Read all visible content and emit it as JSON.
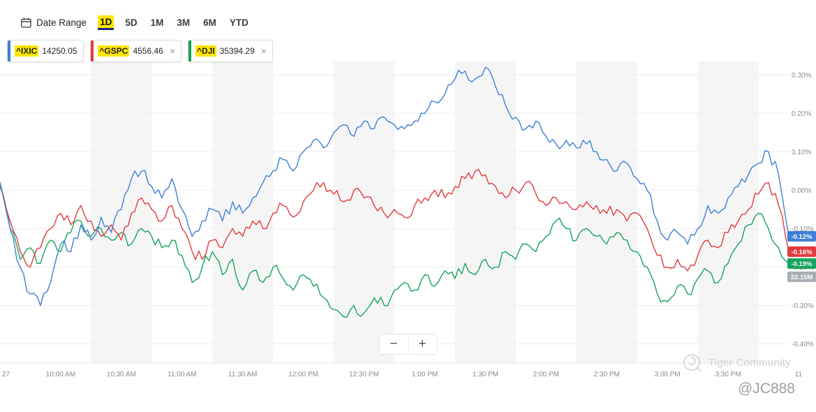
{
  "toolbar": {
    "date_range_label": "Date Range",
    "tabs": [
      {
        "label": "1D",
        "active": true
      },
      {
        "label": "5D",
        "active": false
      },
      {
        "label": "1M",
        "active": false
      },
      {
        "label": "3M",
        "active": false
      },
      {
        "label": "6M",
        "active": false
      },
      {
        "label": "YTD",
        "active": false
      }
    ]
  },
  "highlight_color": "#ffe600",
  "tickers": [
    {
      "symbol": "^IXIC",
      "price": "14250.05",
      "color": "#3d7fd4",
      "closable": false
    },
    {
      "symbol": "^GSPC",
      "price": "4556.46",
      "color": "#e23a3d",
      "closable": true
    },
    {
      "symbol": "^DJI",
      "price": "35394.29",
      "color": "#15a35b",
      "closable": true
    }
  ],
  "zoom_controls": {
    "minus": "−",
    "plus": "+"
  },
  "watermark": {
    "community": "Tiger Community",
    "user": "@JC888"
  },
  "chart_data": {
    "type": "line",
    "x_unit": "minutes from 09:30",
    "total_minutes": 390,
    "step_minutes": 5,
    "jitter": 0.016,
    "ylim": [
      -0.45,
      0.335
    ],
    "grid": true,
    "stripe_color": "#f5f5f6",
    "volume_label": "32.15M",
    "volume_badge_color": "#a7aeb5",
    "y_ticks": [
      {
        "label": "0.30%",
        "v": 0.3
      },
      {
        "label": "0.20%",
        "v": 0.2
      },
      {
        "label": "0.10%",
        "v": 0.1
      },
      {
        "label": "0.00%",
        "v": 0.0
      },
      {
        "label": "-0.10%",
        "v": -0.1
      },
      {
        "label": "-0.20%",
        "v": -0.2
      },
      {
        "label": "-0.30%",
        "v": -0.3
      },
      {
        "label": "-0.40%",
        "v": -0.4
      }
    ],
    "x_ticks": [
      {
        "label": "27",
        "t": 1,
        "anchor": "start"
      },
      {
        "label": "10:00 AM",
        "t": 30
      },
      {
        "label": "10:30 AM",
        "t": 60
      },
      {
        "label": "11:00 AM",
        "t": 90
      },
      {
        "label": "11:30 AM",
        "t": 120
      },
      {
        "label": "12:00 PM",
        "t": 150
      },
      {
        "label": "12:30 PM",
        "t": 180
      },
      {
        "label": "1:00 PM",
        "t": 210
      },
      {
        "label": "1:30 PM",
        "t": 240
      },
      {
        "label": "2:00 PM",
        "t": 270
      },
      {
        "label": "2:30 PM",
        "t": 300
      },
      {
        "label": "3:00 PM",
        "t": 330
      },
      {
        "label": "3:30 PM",
        "t": 360
      },
      {
        "label": "11",
        "t": 393,
        "anchor": "start"
      }
    ],
    "series": [
      {
        "name": "^IXIC",
        "color": "#3d7fd4",
        "change_label": "-0.12%",
        "change": -0.12,
        "values": [
          0.02,
          -0.1,
          -0.2,
          -0.27,
          -0.3,
          -0.24,
          -0.14,
          -0.16,
          -0.09,
          -0.13,
          -0.07,
          -0.11,
          -0.05,
          0.03,
          0.05,
          0.01,
          -0.02,
          0.03,
          -0.05,
          -0.12,
          -0.08,
          -0.05,
          -0.08,
          -0.03,
          -0.06,
          -0.02,
          0.02,
          0.05,
          0.08,
          0.05,
          0.1,
          0.13,
          0.11,
          0.15,
          0.17,
          0.14,
          0.18,
          0.16,
          0.19,
          0.17,
          0.16,
          0.18,
          0.2,
          0.23,
          0.25,
          0.29,
          0.31,
          0.29,
          0.32,
          0.27,
          0.22,
          0.19,
          0.16,
          0.18,
          0.14,
          0.12,
          0.13,
          0.11,
          0.12,
          0.1,
          0.08,
          0.05,
          0.07,
          0.03,
          0.0,
          -0.08,
          -0.13,
          -0.11,
          -0.14,
          -0.1,
          -0.04,
          -0.06,
          -0.02,
          0.01,
          0.04,
          0.07,
          0.1,
          0.04,
          -0.12
        ]
      },
      {
        "name": "^GSPC",
        "color": "#e23a3d",
        "change_label": "-0.16%",
        "change": -0.16,
        "values": [
          0.02,
          -0.08,
          -0.16,
          -0.2,
          -0.15,
          -0.1,
          -0.06,
          -0.09,
          -0.04,
          -0.08,
          -0.12,
          -0.09,
          -0.13,
          -0.06,
          -0.02,
          -0.05,
          -0.08,
          -0.04,
          -0.1,
          -0.16,
          -0.18,
          -0.13,
          -0.15,
          -0.1,
          -0.12,
          -0.08,
          -0.1,
          -0.06,
          -0.04,
          -0.07,
          -0.03,
          0.0,
          0.02,
          -0.01,
          -0.03,
          0.0,
          -0.02,
          -0.04,
          -0.06,
          -0.05,
          -0.07,
          -0.04,
          -0.02,
          0.0,
          -0.02,
          0.01,
          0.03,
          0.05,
          0.04,
          0.01,
          -0.02,
          0.0,
          0.02,
          -0.01,
          -0.04,
          -0.02,
          -0.03,
          -0.05,
          -0.03,
          -0.04,
          -0.06,
          -0.05,
          -0.08,
          -0.06,
          -0.1,
          -0.17,
          -0.2,
          -0.18,
          -0.21,
          -0.17,
          -0.13,
          -0.15,
          -0.11,
          -0.08,
          -0.05,
          -0.01,
          0.02,
          -0.04,
          -0.16
        ]
      },
      {
        "name": "^DJI",
        "color": "#15a35b",
        "change_label": "-0.19%",
        "change": -0.19,
        "values": [
          0.01,
          -0.1,
          -0.18,
          -0.15,
          -0.19,
          -0.13,
          -0.16,
          -0.11,
          -0.08,
          -0.12,
          -0.1,
          -0.13,
          -0.11,
          -0.14,
          -0.1,
          -0.12,
          -0.15,
          -0.13,
          -0.17,
          -0.24,
          -0.2,
          -0.16,
          -0.22,
          -0.18,
          -0.26,
          -0.21,
          -0.24,
          -0.2,
          -0.23,
          -0.26,
          -0.22,
          -0.25,
          -0.28,
          -0.31,
          -0.33,
          -0.3,
          -0.32,
          -0.28,
          -0.3,
          -0.26,
          -0.24,
          -0.26,
          -0.22,
          -0.25,
          -0.21,
          -0.23,
          -0.19,
          -0.22,
          -0.18,
          -0.2,
          -0.16,
          -0.18,
          -0.14,
          -0.16,
          -0.12,
          -0.08,
          -0.1,
          -0.13,
          -0.1,
          -0.12,
          -0.14,
          -0.11,
          -0.13,
          -0.16,
          -0.2,
          -0.27,
          -0.29,
          -0.25,
          -0.27,
          -0.23,
          -0.21,
          -0.24,
          -0.19,
          -0.14,
          -0.09,
          -0.06,
          -0.1,
          -0.15,
          -0.19
        ]
      }
    ]
  }
}
